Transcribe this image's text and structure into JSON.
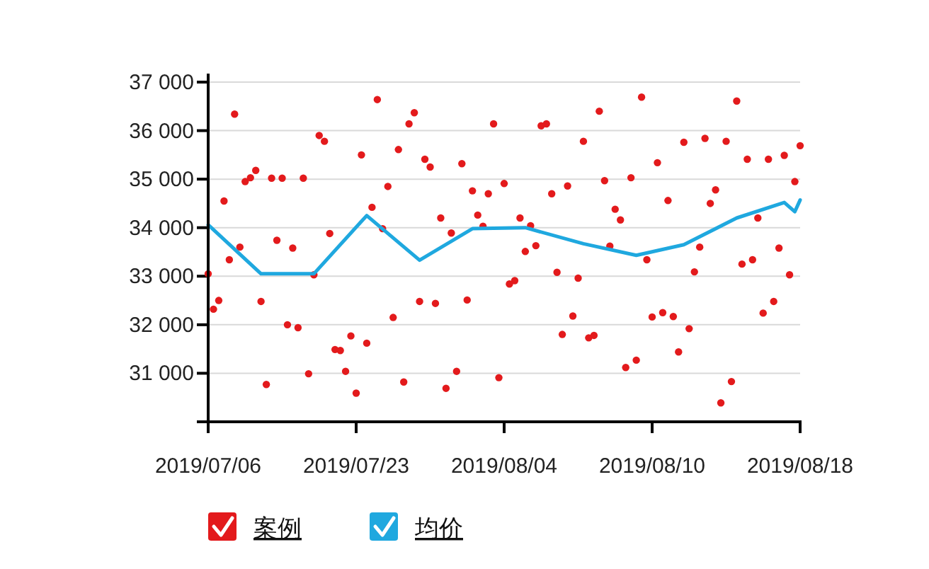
{
  "chart_data": {
    "type": "scatter",
    "categories": [
      "2019/07/06",
      null,
      null,
      null,
      null,
      null,
      null,
      null,
      null,
      null,
      null,
      null,
      null,
      null,
      null,
      null,
      null,
      null,
      null,
      null,
      null,
      null,
      null,
      null,
      null,
      null,
      null,
      null,
      "2019/07/23",
      null,
      null,
      null,
      null,
      null,
      null,
      null,
      null,
      null,
      null,
      null,
      null,
      null,
      null,
      null,
      null,
      null,
      null,
      null,
      null,
      null,
      null,
      null,
      null,
      null,
      null,
      null,
      "2019/08/04",
      null,
      null,
      null,
      null,
      null,
      null,
      null,
      null,
      null,
      null,
      null,
      null,
      null,
      null,
      null,
      null,
      null,
      null,
      null,
      null,
      null,
      null,
      null,
      null,
      null,
      null,
      null,
      "2019/08/10",
      null,
      null,
      null,
      null,
      null,
      null,
      null,
      null,
      null,
      null,
      null,
      null,
      null,
      null,
      null,
      null,
      null,
      null,
      null,
      null,
      null,
      null,
      null,
      null,
      null,
      null,
      null,
      "2019/08/18"
    ],
    "ylim": [
      30000,
      37000
    ],
    "yticks": [
      {
        "value": 30000,
        "label": null
      },
      {
        "value": 31000,
        "label": "31 000"
      },
      {
        "value": 32000,
        "label": "32 000"
      },
      {
        "value": 33000,
        "label": "33 000"
      },
      {
        "value": 34000,
        "label": "34 000"
      },
      {
        "value": 35000,
        "label": "35 000"
      },
      {
        "value": 36000,
        "label": "36 000"
      },
      {
        "value": 37000,
        "label": "37 000"
      }
    ],
    "grid": "y",
    "legend": "bottom left",
    "series": [
      {
        "name": "案例",
        "marker": "circle",
        "color": "#e31a1c",
        "values": [
          33050,
          32320,
          32500,
          34550,
          33340,
          36340,
          33600,
          34950,
          35030,
          35180,
          32480,
          30770,
          35020,
          33740,
          35020,
          32000,
          33580,
          31940,
          35020,
          30990,
          33030,
          35900,
          35780,
          33880,
          31490,
          31470,
          31040,
          31770,
          30590,
          35500,
          31620,
          34420,
          36640,
          33980,
          34850,
          32150,
          35610,
          30820,
          36140,
          36370,
          32480,
          35410,
          35250,
          32440,
          34200,
          30690,
          33890,
          31040,
          35320,
          32510,
          34760,
          34260,
          34030,
          34700,
          36140,
          30910,
          34910,
          32840,
          32910,
          34200,
          33510,
          34040,
          33630,
          36100,
          36140,
          34700,
          33080,
          31800,
          34860,
          32180,
          32960,
          35780,
          31730,
          31780,
          36400,
          34970,
          33620,
          34380,
          34160,
          31120,
          35030,
          31270,
          36690,
          33340,
          32160,
          35340,
          32250,
          34560,
          32170,
          31440,
          35760,
          31920,
          33090,
          33600,
          35840,
          34500,
          34780,
          30390,
          35780,
          30830,
          36610,
          33250,
          35410,
          33340,
          34200,
          32240,
          35410,
          32480,
          33580,
          35490,
          33030,
          34950,
          35690
        ]
      },
      {
        "name": "均价",
        "type": "line",
        "marker": "none",
        "color": "#1fa8df",
        "values": [
          34060,
          null,
          null,
          null,
          null,
          null,
          null,
          null,
          null,
          null,
          33050,
          null,
          null,
          null,
          null,
          null,
          null,
          null,
          null,
          null,
          33050,
          null,
          null,
          null,
          null,
          null,
          null,
          null,
          null,
          null,
          34250,
          null,
          null,
          null,
          null,
          null,
          null,
          null,
          null,
          null,
          33330,
          null,
          null,
          null,
          null,
          null,
          null,
          null,
          null,
          null,
          33980,
          null,
          null,
          null,
          null,
          null,
          null,
          null,
          null,
          null,
          34000,
          null,
          null,
          null,
          null,
          null,
          null,
          null,
          null,
          null,
          null,
          33670,
          null,
          null,
          null,
          null,
          null,
          null,
          null,
          null,
          null,
          33430,
          null,
          null,
          null,
          null,
          null,
          null,
          null,
          null,
          33650,
          null,
          null,
          null,
          null,
          null,
          null,
          null,
          null,
          null,
          34200,
          null,
          null,
          null,
          null,
          null,
          null,
          null,
          null,
          34520,
          null,
          34330,
          34570
        ]
      }
    ]
  }
}
